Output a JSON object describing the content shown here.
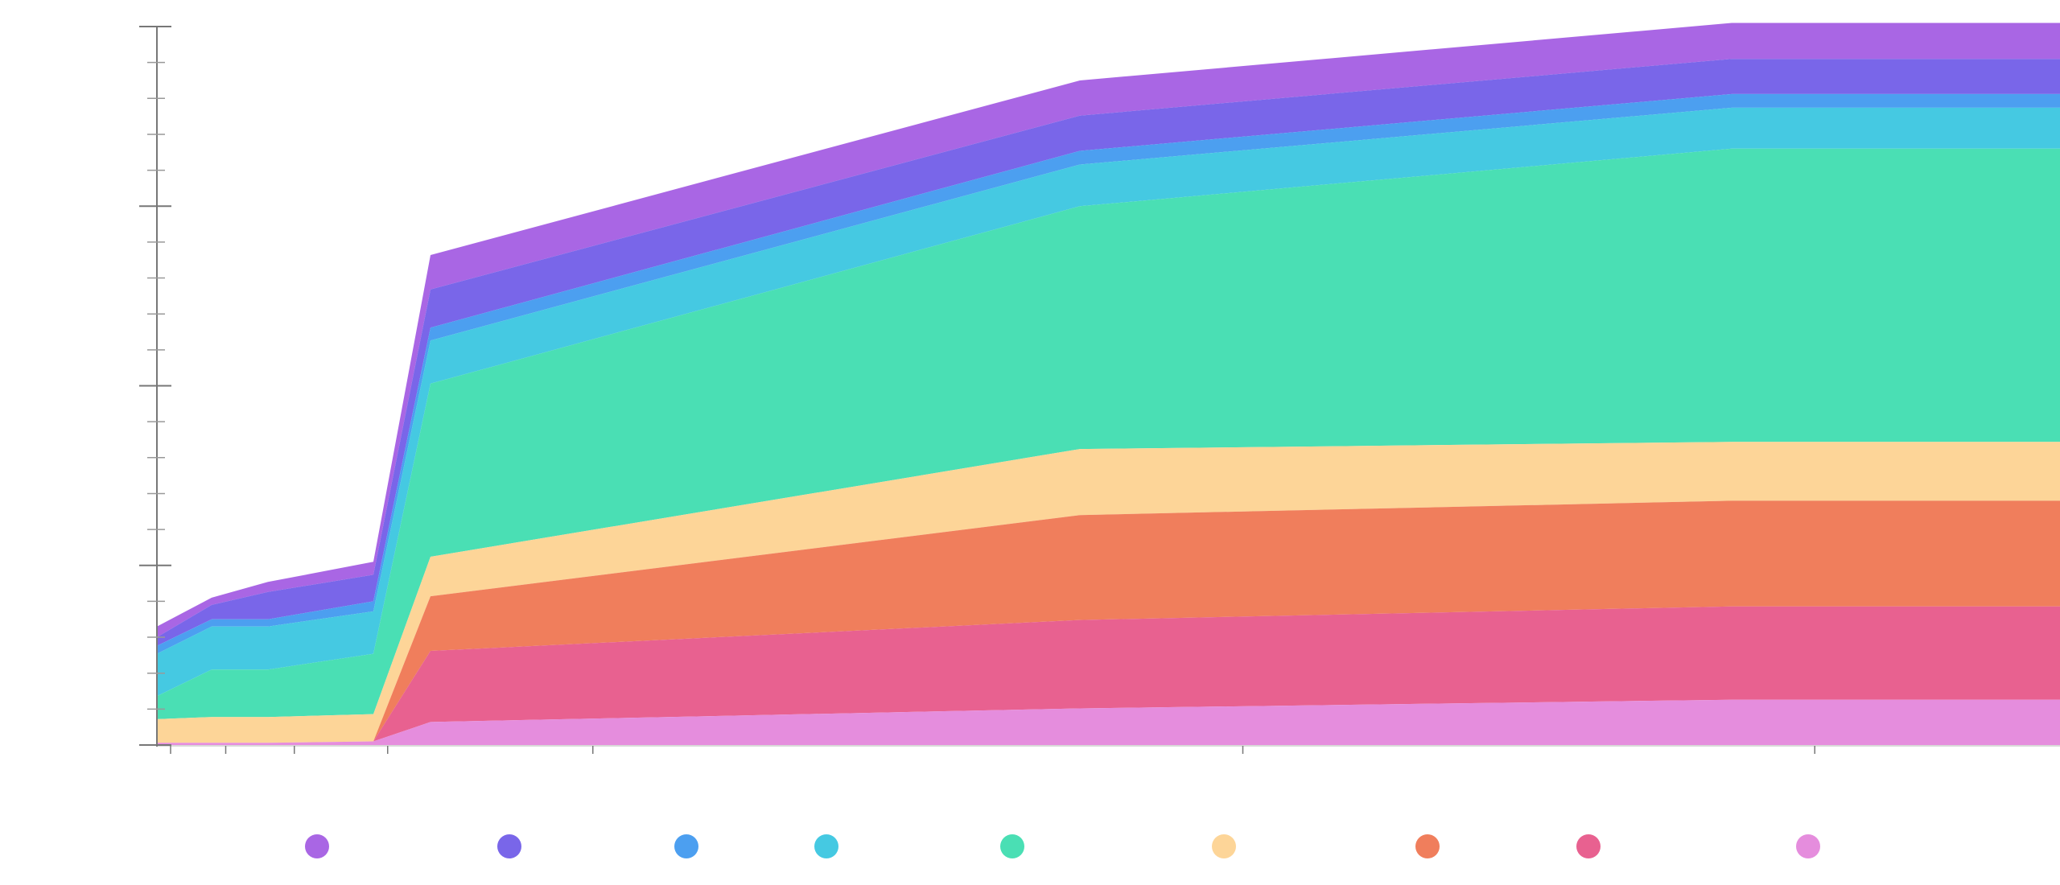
{
  "chart_data": {
    "type": "area",
    "stacked": true,
    "x": [
      0,
      1,
      2,
      3,
      4,
      5,
      6,
      7
    ],
    "ylim": [
      0,
      100
    ],
    "y_major_ticks": [
      0,
      25,
      50,
      75,
      100
    ],
    "y_minor_step": 5,
    "x_ticks": [
      0.25,
      1.25,
      2.25,
      3.25,
      4.25,
      5.25,
      6.25
    ],
    "grid": false,
    "legend_position": "bottom",
    "series": [
      {
        "color": "#e58ddd",
        "values": [
          0.3,
          0.3,
          0.3,
          0.5,
          3.2,
          5.1,
          6.3,
          6.3
        ]
      },
      {
        "color": "#e86190",
        "values": [
          0.3,
          0.3,
          0.3,
          0.5,
          13.1,
          17.4,
          19.3,
          19.3
        ]
      },
      {
        "color": "#f07e5c",
        "values": [
          0.3,
          0.3,
          0.3,
          0.5,
          20.7,
          32.0,
          34.0,
          34.0
        ]
      },
      {
        "color": "#fdd598",
        "values": [
          3.6,
          3.9,
          3.9,
          4.3,
          26.2,
          41.2,
          42.2,
          42.2
        ]
      },
      {
        "color": "#4adfb4",
        "values": [
          6.8,
          10.5,
          10.5,
          12.7,
          50.3,
          75.0,
          83.0,
          83.0
        ]
      },
      {
        "color": "#45c9e2",
        "values": [
          12.7,
          16.5,
          16.5,
          18.6,
          56.3,
          80.8,
          88.7,
          88.7
        ]
      },
      {
        "color": "#4c9ff0",
        "values": [
          13.8,
          17.5,
          17.5,
          20.0,
          58.1,
          82.7,
          90.6,
          90.6
        ]
      },
      {
        "color": "#7966e9",
        "values": [
          15.0,
          19.5,
          21.3,
          23.7,
          63.4,
          87.6,
          95.5,
          95.5
        ]
      },
      {
        "color": "#a966e4",
        "values": [
          16.5,
          20.5,
          22.7,
          25.5,
          68.2,
          92.5,
          100.5,
          100.5
        ]
      }
    ],
    "legend": [
      {
        "color": "#a966e4"
      },
      {
        "color": "#7966e9"
      },
      {
        "color": "#4c9ff0"
      },
      {
        "color": "#45c9e2"
      },
      {
        "color": "#4adfb4"
      },
      {
        "color": "#fdd598"
      },
      {
        "color": "#f07e5c"
      },
      {
        "color": "#e86190"
      },
      {
        "color": "#e58ddd"
      }
    ]
  }
}
